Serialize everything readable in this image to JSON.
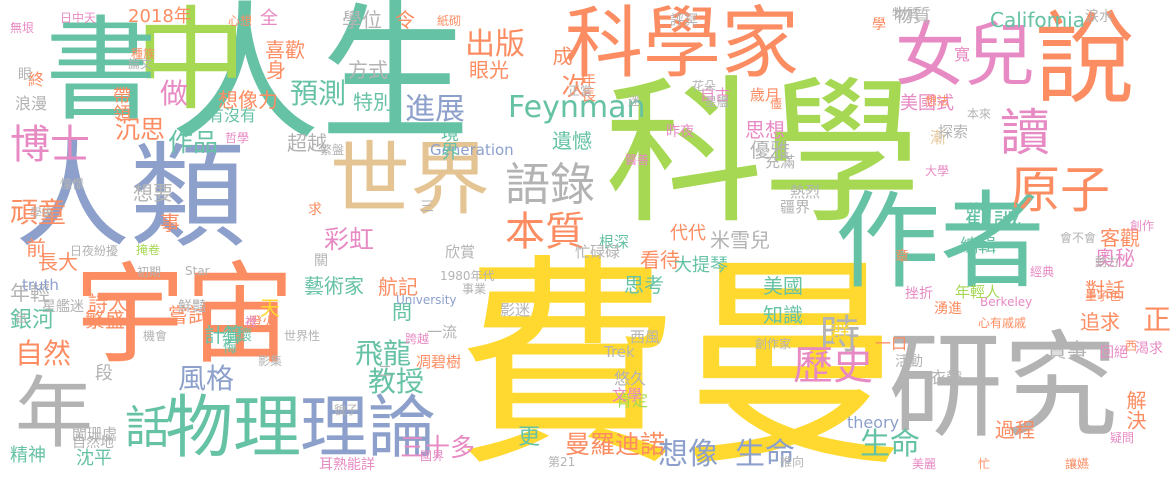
{
  "palette": {
    "yellow": "#ffd92f",
    "green": "#66c2a5",
    "orange": "#fc8d62",
    "blue": "#8da0cb",
    "pink": "#e78ac3",
    "lime": "#a6d854",
    "tan": "#e5c494",
    "grey": "#b3b3b3"
  },
  "words": [
    {
      "text": "費曼",
      "c": "yellow"
    },
    {
      "text": "科學",
      "c": "lime"
    },
    {
      "text": "人生",
      "c": "green"
    },
    {
      "text": "研究",
      "c": "grey"
    },
    {
      "text": "作者",
      "c": "green"
    },
    {
      "text": "宇宙",
      "c": "orange"
    },
    {
      "text": "人類",
      "c": "blue"
    },
    {
      "text": "中",
      "c": "lime"
    },
    {
      "text": "書",
      "c": "green"
    },
    {
      "text": "說",
      "c": "orange"
    },
    {
      "text": "科學家",
      "c": "orange"
    },
    {
      "text": "女兒",
      "c": "pink"
    },
    {
      "text": "世界",
      "c": "tan"
    },
    {
      "text": "物理",
      "c": "green"
    },
    {
      "text": "理論",
      "c": "blue"
    },
    {
      "text": "年",
      "c": "grey"
    },
    {
      "text": "讀",
      "c": "pink"
    },
    {
      "text": "原子",
      "c": "orange"
    },
    {
      "text": "語錄",
      "c": "grey"
    },
    {
      "text": "本質",
      "c": "orange"
    },
    {
      "text": "博士",
      "c": "pink"
    },
    {
      "text": "話",
      "c": "green"
    },
    {
      "text": "歷史",
      "c": "pink"
    },
    {
      "text": "Feynman",
      "c": "green"
    },
    {
      "text": "想像",
      "c": "blue"
    },
    {
      "text": "生命",
      "c": "blue"
    },
    {
      "text": "生命",
      "c": "green"
    },
    {
      "text": "時",
      "c": "grey"
    },
    {
      "text": "進展",
      "c": "blue"
    },
    {
      "text": "出版",
      "c": "orange"
    },
    {
      "text": "預測",
      "c": "green"
    },
    {
      "text": "做",
      "c": "pink"
    },
    {
      "text": "作品",
      "c": "green"
    },
    {
      "text": "教授",
      "c": "green"
    },
    {
      "text": "風格",
      "c": "blue"
    },
    {
      "text": "飛龍",
      "c": "green"
    },
    {
      "text": "曼羅迪諾",
      "c": "orange"
    },
    {
      "text": "三十多",
      "c": "pink"
    },
    {
      "text": "勸誡",
      "c": "green"
    },
    {
      "text": "頑童",
      "c": "orange"
    },
    {
      "text": "沉思",
      "c": "orange"
    },
    {
      "text": "自然",
      "c": "orange"
    },
    {
      "text": "2018年",
      "c": "orange"
    },
    {
      "text": "學位",
      "c": "grey"
    },
    {
      "text": "California",
      "c": "green"
    },
    {
      "text": "物質",
      "c": "grey"
    },
    {
      "text": "喜歡",
      "c": "orange"
    },
    {
      "text": "全",
      "c": "pink"
    },
    {
      "text": "身",
      "c": "orange"
    },
    {
      "text": "方式",
      "c": "grey"
    },
    {
      "text": "想像力",
      "c": "orange"
    },
    {
      "text": "特別",
      "c": "green"
    },
    {
      "text": "眼光",
      "c": "orange"
    },
    {
      "text": "遺憾",
      "c": "green"
    },
    {
      "text": "思想",
      "c": "pink"
    },
    {
      "text": "優雅",
      "c": "grey"
    },
    {
      "text": "美國式",
      "c": "pink"
    },
    {
      "text": "編輯",
      "c": "green"
    },
    {
      "text": "客觀",
      "c": "orange"
    },
    {
      "text": "奧秘",
      "c": "pink"
    },
    {
      "text": "對話",
      "c": "orange"
    },
    {
      "text": "過程",
      "c": "orange"
    },
    {
      "text": "解決",
      "c": "orange"
    },
    {
      "text": "追求",
      "c": "orange"
    },
    {
      "text": "正",
      "c": "orange"
    },
    {
      "text": "實事",
      "c": "grey"
    },
    {
      "text": "群",
      "c": "yellow"
    },
    {
      "text": "一口",
      "c": "orange"
    },
    {
      "text": "肯定",
      "c": "lime"
    },
    {
      "text": "悠久",
      "c": "grey"
    },
    {
      "text": "思考",
      "c": "green"
    },
    {
      "text": "看待",
      "c": "orange"
    },
    {
      "text": "知識",
      "c": "green"
    },
    {
      "text": "美國",
      "c": "green"
    },
    {
      "text": "米雪兒",
      "c": "grey"
    },
    {
      "text": "代代",
      "c": "orange"
    },
    {
      "text": "大提琴",
      "c": "green"
    },
    {
      "text": "航記",
      "c": "orange"
    },
    {
      "text": "彩虹",
      "c": "pink"
    },
    {
      "text": "問",
      "c": "green"
    },
    {
      "text": "藝術家",
      "c": "green"
    },
    {
      "text": "更",
      "c": "green"
    },
    {
      "text": "計算",
      "c": "green"
    },
    {
      "text": "繁盛",
      "c": "orange"
    },
    {
      "text": "嘗試",
      "c": "orange"
    },
    {
      "text": "詩人",
      "c": "orange"
    },
    {
      "text": "年輕",
      "c": "grey"
    },
    {
      "text": "銀河",
      "c": "green"
    },
    {
      "text": "長大",
      "c": "orange"
    },
    {
      "text": "前",
      "c": "orange"
    },
    {
      "text": "精神",
      "c": "green"
    },
    {
      "text": "沈平",
      "c": "green"
    },
    {
      "text": "想要",
      "c": "grey"
    },
    {
      "text": "超越",
      "c": "grey"
    },
    {
      "text": "事",
      "c": "orange"
    },
    {
      "text": "天",
      "c": "yellow"
    },
    {
      "text": "段",
      "c": "grey"
    },
    {
      "text": "次",
      "c": "orange"
    },
    {
      "text": "成",
      "c": "orange"
    },
    {
      "text": "令",
      "c": "orange"
    },
    {
      "text": "帶領",
      "c": "orange"
    },
    {
      "text": "終",
      "c": "orange"
    },
    {
      "text": "浪漫",
      "c": "grey"
    },
    {
      "text": "有沒有",
      "c": "green"
    },
    {
      "text": "Generation",
      "c": "blue"
    },
    {
      "text": "境界",
      "c": "green"
    },
    {
      "text": "歲月",
      "c": "orange"
    },
    {
      "text": "自古",
      "c": "pink"
    },
    {
      "text": "年長",
      "c": "orange"
    },
    {
      "text": "充滿",
      "c": "grey"
    },
    {
      "text": "熱烈",
      "c": "grey"
    },
    {
      "text": "疆界",
      "c": "grey"
    },
    {
      "text": "欣賞",
      "c": "grey"
    },
    {
      "text": "根深",
      "c": "green"
    },
    {
      "text": "忙碌碌",
      "c": "grey"
    },
    {
      "text": "影迷",
      "c": "grey"
    },
    {
      "text": "一流",
      "c": "grey"
    },
    {
      "text": "西風",
      "c": "grey"
    },
    {
      "text": "Trek",
      "c": "grey"
    },
    {
      "text": "文學",
      "c": "pink"
    },
    {
      "text": "Star",
      "c": "grey"
    },
    {
      "text": "truth",
      "c": "blue"
    },
    {
      "text": "theory",
      "c": "blue"
    },
    {
      "text": "University",
      "c": "blue"
    },
    {
      "text": "Berkeley",
      "c": "pink"
    },
    {
      "text": "1980年代",
      "c": "grey"
    },
    {
      "text": "事業",
      "c": "grey"
    },
    {
      "text": "星艦迷",
      "c": "grey"
    },
    {
      "text": "鮮豔",
      "c": "grey"
    },
    {
      "text": "機會",
      "c": "grey"
    },
    {
      "text": "缅懷",
      "c": "green"
    },
    {
      "text": "世界性",
      "c": "grey"
    },
    {
      "text": "跨越",
      "c": "pink"
    },
    {
      "text": "凋碧樹",
      "c": "orange"
    },
    {
      "text": "影集",
      "c": "grey"
    },
    {
      "text": "闌珊處",
      "c": "grey"
    },
    {
      "text": "自然地",
      "c": "grey"
    },
    {
      "text": "耳熟能詳",
      "c": "pink"
    },
    {
      "text": "國界",
      "c": "pink"
    },
    {
      "text": "第21",
      "c": "grey"
    },
    {
      "text": "推向",
      "c": "grey"
    },
    {
      "text": "美麗",
      "c": "pink"
    },
    {
      "text": "讓嬿",
      "c": "orange"
    },
    {
      "text": "忙",
      "c": "orange"
    },
    {
      "text": "疑問",
      "c": "pink"
    },
    {
      "text": "衣帶",
      "c": "grey"
    },
    {
      "text": "回絕",
      "c": "pink"
    },
    {
      "text": "渴求",
      "c": "pink"
    },
    {
      "text": "活動",
      "c": "grey"
    },
    {
      "text": "湧進",
      "c": "orange"
    },
    {
      "text": "心有戚戚",
      "c": "orange"
    },
    {
      "text": "挫折",
      "c": "pink"
    },
    {
      "text": "年輕人",
      "c": "lime"
    },
    {
      "text": "量子色",
      "c": "orange"
    },
    {
      "text": "動力",
      "c": "grey"
    },
    {
      "text": "經典",
      "c": "pink"
    },
    {
      "text": "會不會",
      "c": "grey"
    },
    {
      "text": "創作",
      "c": "pink"
    },
    {
      "text": "大學",
      "c": "pink"
    },
    {
      "text": "漸",
      "c": "tan"
    },
    {
      "text": "探索",
      "c": "grey"
    },
    {
      "text": "本來",
      "c": "grey"
    },
    {
      "text": "想法",
      "c": "orange"
    },
    {
      "text": "寬",
      "c": "pink"
    },
    {
      "text": "涙水",
      "c": "grey"
    },
    {
      "text": "物質",
      "c": "grey"
    },
    {
      "text": "學",
      "c": "orange"
    },
    {
      "text": "評冥",
      "c": "grey"
    },
    {
      "text": "紙砌",
      "c": "orange"
    },
    {
      "text": "心想",
      "c": "orange"
    },
    {
      "text": "日中天",
      "c": "pink"
    },
    {
      "text": "無垠",
      "c": "pink"
    },
    {
      "text": "種族",
      "c": "orange"
    },
    {
      "text": "論文",
      "c": "grey"
    },
    {
      "text": "眼",
      "c": "grey"
    },
    {
      "text": "花朵",
      "c": "grey"
    },
    {
      "text": "正當",
      "c": "grey"
    },
    {
      "text": "迷",
      "c": "grey"
    },
    {
      "text": "星艦",
      "c": "grey"
    },
    {
      "text": "僵",
      "c": "orange"
    },
    {
      "text": "哲學",
      "c": "pink"
    },
    {
      "text": "繁盤",
      "c": "grey"
    },
    {
      "text": "憧憬",
      "c": "grey"
    },
    {
      "text": "學術",
      "c": "grey"
    },
    {
      "text": "掩卷",
      "c": "lime"
    },
    {
      "text": "日夜紛擾",
      "c": "grey"
    },
    {
      "text": "初期",
      "c": "grey"
    },
    {
      "text": "燈火",
      "c": "orange"
    },
    {
      "text": "悔",
      "c": "green"
    },
    {
      "text": "貌子",
      "c": "grey"
    },
    {
      "text": "二",
      "c": "grey"
    },
    {
      "text": "三",
      "c": "grey"
    },
    {
      "text": "求",
      "c": "orange"
    },
    {
      "text": "關",
      "c": "grey"
    },
    {
      "text": "出",
      "c": "grey"
    },
    {
      "text": "裡",
      "c": "pink"
    },
    {
      "text": "章",
      "c": "orange"
    },
    {
      "text": "創作家",
      "c": "grey"
    },
    {
      "text": "醫善",
      "c": "pink"
    },
    {
      "text": "昨夜",
      "c": "pink"
    },
    {
      "text": "西",
      "c": "orange"
    }
  ]
}
